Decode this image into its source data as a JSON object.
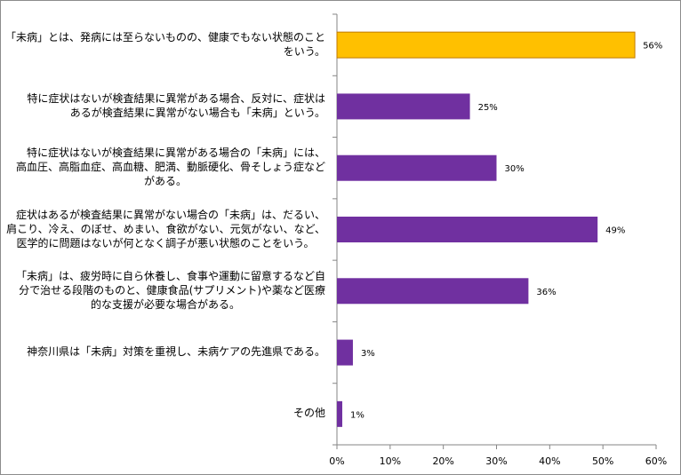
{
  "chart_data": {
    "type": "bar",
    "orientation": "horizontal",
    "categories": [
      [
        "「未病」とは、発病には至らないものの、健康でもない状態のこと",
        "をいう。"
      ],
      [
        "特に症状はないが検査結果に異常がある場合、反対に、症状は",
        "あるが検査結果に異常がない場合も「未病」という。"
      ],
      [
        "特に症状はないが検査結果に異常がある場合の「未病」には、",
        "高血圧、高脂血症、高血糖、肥満、動脈硬化、骨そしょう症など",
        "がある。"
      ],
      [
        "症状はあるが検査結果に異常がない場合の「未病」は、だるい、",
        "肩こり、冷え、のぼせ、めまい、食欲がない、元気がない、など、",
        "医学的に問題はないが何となく調子が悪い状態のことをいう。"
      ],
      [
        "「未病」は、疲労時に自ら休養し、食事や運動に留意するなど自",
        "分で治せる段階のものと、健康食品(サプリメント)や薬など医療",
        "的な支援が必要な場合がある。"
      ],
      [
        "神奈川県は「未病」対策を重視し、未病ケアの先進県である。"
      ],
      [
        "その他"
      ]
    ],
    "values": [
      56,
      25,
      30,
      49,
      36,
      3,
      1
    ],
    "value_labels": [
      "56%",
      "25%",
      "30%",
      "49%",
      "36%",
      "3%",
      "1%"
    ],
    "xlim": [
      0,
      60
    ],
    "x_ticks": [
      "0%",
      "10%",
      "20%",
      "30%",
      "40%",
      "50%",
      "60%"
    ],
    "grid": false,
    "colors": {
      "highlight_fill": "#FFC000",
      "highlight_stroke": "#C07A00",
      "bar_fill": "#7030A0",
      "axis": "#868686"
    },
    "highlight_index": 0
  }
}
